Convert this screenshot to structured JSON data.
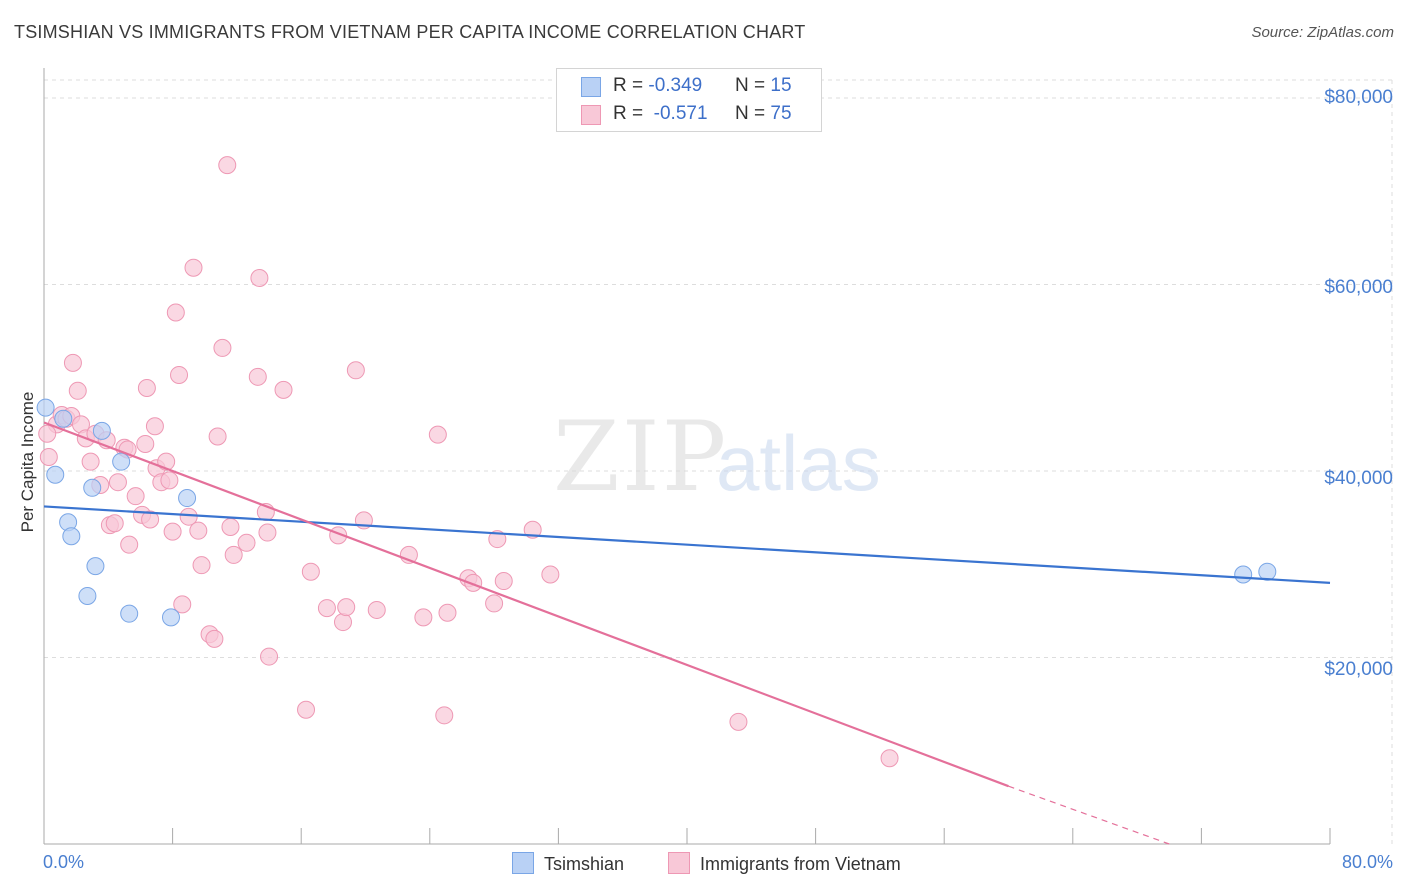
{
  "title": "TSIMSHIAN VS IMMIGRANTS FROM VIETNAM PER CAPITA INCOME CORRELATION CHART",
  "source": "Source: ZipAtlas.com",
  "watermark": {
    "zip": "ZIP",
    "atlas": "atlas"
  },
  "legend_top": {
    "rows": [
      {
        "r_label": "R = ",
        "r_value": "-0.349",
        "n_label": "N = ",
        "n_value": "15"
      },
      {
        "r_label": "R = ",
        "r_value": "-0.571",
        "n_label": "N = ",
        "n_value": "75"
      }
    ]
  },
  "legend_bottom": {
    "items": [
      {
        "label": "Tsimshian"
      },
      {
        "label": "Immigrants from Vietnam"
      }
    ]
  },
  "colors": {
    "blue_fill": "#b9d1f5",
    "blue_stroke": "#7aa6e6",
    "blue_line": "#3a74d0",
    "pink_fill": "#f8c8d7",
    "pink_stroke": "#ee98b4",
    "pink_line": "#e4709a",
    "grid": "#dddddd",
    "axis_text": "#4a7fd0"
  },
  "chart_data": {
    "type": "scatter",
    "title": "TSIMSHIAN VS IMMIGRANTS FROM VIETNAM PER CAPITA INCOME CORRELATION CHART",
    "xlabel": "",
    "ylabel": "Per Capita Income",
    "xlim": [
      0,
      80
    ],
    "ylim": [
      0,
      80000
    ],
    "x_tick_labels": [
      "0.0%",
      "80.0%"
    ],
    "y_ticks": [
      {
        "value": 20000,
        "label": "$20,000"
      },
      {
        "value": 40000,
        "label": "$40,000"
      },
      {
        "value": 60000,
        "label": "$60,000"
      },
      {
        "value": 80000,
        "label": "$80,000"
      }
    ],
    "series": [
      {
        "name": "Tsimshian",
        "R": -0.349,
        "N": 15,
        "trend": {
          "x0": 0,
          "y0": 36200,
          "x1": 80,
          "y1": 28000
        },
        "points": [
          [
            0.1,
            46800
          ],
          [
            1.2,
            45600
          ],
          [
            0.7,
            39600
          ],
          [
            3.6,
            44300
          ],
          [
            4.8,
            41000
          ],
          [
            3.0,
            38200
          ],
          [
            1.5,
            34500
          ],
          [
            1.7,
            33000
          ],
          [
            3.2,
            29800
          ],
          [
            8.9,
            37100
          ],
          [
            2.7,
            26600
          ],
          [
            5.3,
            24700
          ],
          [
            7.9,
            24300
          ],
          [
            74.6,
            28900
          ],
          [
            76.1,
            29200
          ]
        ]
      },
      {
        "name": "Immigrants from Vietnam",
        "R": -0.571,
        "N": 75,
        "trend": {
          "x0": 0,
          "y0": 45200,
          "x1": 60,
          "y1": 6200
        },
        "trend_extension": {
          "x0": 60,
          "y0": 6200,
          "x1": 70,
          "y1": 0
        },
        "points": [
          [
            0.3,
            41500
          ],
          [
            0.8,
            45000
          ],
          [
            1.1,
            46000
          ],
          [
            1.4,
            45600
          ],
          [
            1.7,
            45900
          ],
          [
            1.8,
            51600
          ],
          [
            2.1,
            48600
          ],
          [
            2.3,
            45000
          ],
          [
            2.6,
            43500
          ],
          [
            2.9,
            41000
          ],
          [
            3.2,
            44000
          ],
          [
            3.5,
            38500
          ],
          [
            3.9,
            43300
          ],
          [
            4.1,
            34200
          ],
          [
            4.4,
            34400
          ],
          [
            4.6,
            38800
          ],
          [
            5.0,
            42500
          ],
          [
            5.2,
            42300
          ],
          [
            5.3,
            32100
          ],
          [
            5.7,
            37300
          ],
          [
            6.1,
            35300
          ],
          [
            6.3,
            42900
          ],
          [
            6.4,
            48900
          ],
          [
            6.6,
            34800
          ],
          [
            7.0,
            40300
          ],
          [
            7.3,
            38800
          ],
          [
            7.6,
            41000
          ],
          [
            7.8,
            39000
          ],
          [
            8.0,
            33500
          ],
          [
            8.2,
            57000
          ],
          [
            8.4,
            50300
          ],
          [
            8.6,
            25700
          ],
          [
            9.0,
            35100
          ],
          [
            9.3,
            61800
          ],
          [
            9.6,
            33600
          ],
          [
            9.8,
            29900
          ],
          [
            10.3,
            22500
          ],
          [
            10.6,
            22000
          ],
          [
            10.8,
            43700
          ],
          [
            11.1,
            53200
          ],
          [
            11.4,
            72800
          ],
          [
            11.6,
            34000
          ],
          [
            11.8,
            31000
          ],
          [
            12.6,
            32300
          ],
          [
            13.3,
            50100
          ],
          [
            13.4,
            60700
          ],
          [
            13.8,
            35600
          ],
          [
            13.9,
            33400
          ],
          [
            14.0,
            20100
          ],
          [
            14.9,
            48700
          ],
          [
            16.3,
            14400
          ],
          [
            16.6,
            29200
          ],
          [
            17.6,
            25300
          ],
          [
            18.3,
            33100
          ],
          [
            18.6,
            23800
          ],
          [
            18.8,
            25400
          ],
          [
            19.4,
            50800
          ],
          [
            19.9,
            34700
          ],
          [
            20.7,
            25100
          ],
          [
            22.7,
            31000
          ],
          [
            23.6,
            24300
          ],
          [
            24.5,
            43900
          ],
          [
            24.9,
            13800
          ],
          [
            25.1,
            24800
          ],
          [
            26.4,
            28500
          ],
          [
            26.7,
            28000
          ],
          [
            28.0,
            25800
          ],
          [
            28.2,
            32700
          ],
          [
            28.6,
            28200
          ],
          [
            30.4,
            33700
          ],
          [
            31.5,
            28900
          ],
          [
            43.2,
            13100
          ],
          [
            52.6,
            9200
          ],
          [
            0.2,
            44000
          ],
          [
            6.9,
            44800
          ]
        ]
      }
    ]
  }
}
